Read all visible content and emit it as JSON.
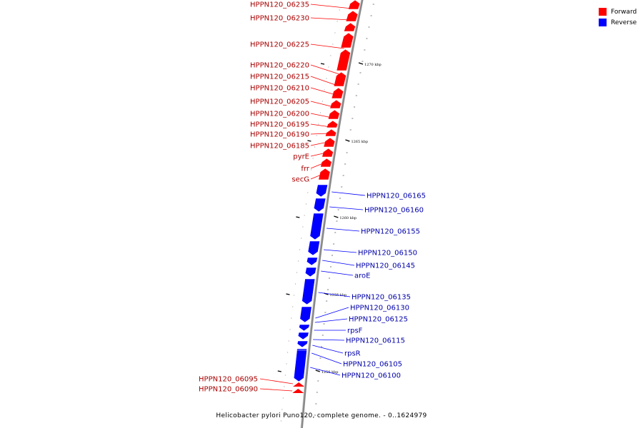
{
  "colors": {
    "forward": "#ff0000",
    "reverse": "#0000ff",
    "backbone": "#8a8a8a"
  },
  "legend": [
    {
      "label": "Forward",
      "color": "#ff0000"
    },
    {
      "label": "Reverse",
      "color": "#0000ff"
    }
  ],
  "caption": "Helicobacter pylori Puno120, complete genome. - 0..1624979",
  "scale_ticks": [
    "1270 kbp",
    "1265 kbp",
    "1260 kbp",
    "1255 kbp",
    "1250 kbp"
  ],
  "forward_genes": [
    "HPPN120_06235",
    "HPPN120_06230",
    "HPPN120_06225",
    "HPPN120_06220",
    "HPPN120_06215",
    "HPPN120_06210",
    "HPPN120_06205",
    "HPPN120_06200",
    "HPPN120_06195",
    "HPPN120_06190",
    "HPPN120_06185",
    "pyrE",
    "frr",
    "secG"
  ],
  "reverse_genes": [
    "HPPN120_06165",
    "HPPN120_06160",
    "HPPN120_06155",
    "HPPN120_06150",
    "HPPN120_06145",
    "aroE",
    "HPPN120_06135",
    "HPPN120_06130",
    "HPPN120_06125",
    "rpsF",
    "HPPN120_06115",
    "rpsR",
    "HPPN120_06105",
    "HPPN120_06100"
  ],
  "forward_genes_bottom": [
    "HPPN120_06095",
    "HPPN120_06090"
  ]
}
